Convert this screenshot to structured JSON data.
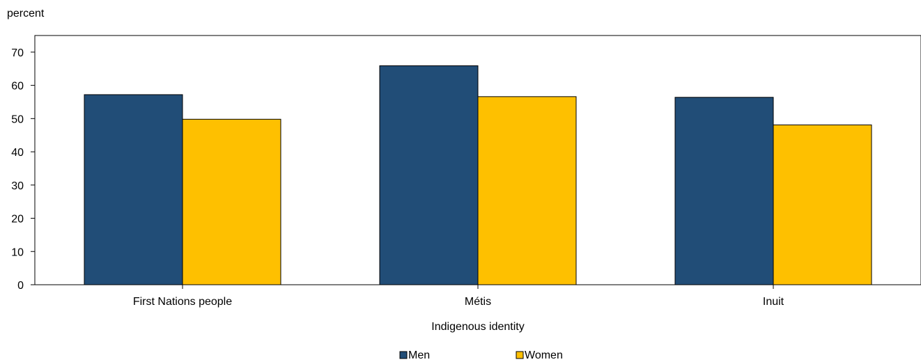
{
  "chart_data": {
    "type": "bar",
    "title": "",
    "ylabel": "percent",
    "xlabel": "Indigenous identity",
    "categories": [
      "First Nations people",
      "Métis",
      "Inuit"
    ],
    "series": [
      {
        "name": "Men",
        "color": "#214d77",
        "values": [
          57.2,
          65.9,
          56.4
        ]
      },
      {
        "name": "Women",
        "color": "#fec000",
        "values": [
          49.8,
          56.6,
          48.1
        ]
      }
    ],
    "ylim": [
      0,
      75
    ],
    "yticks": [
      0,
      10,
      20,
      30,
      40,
      50,
      60,
      70
    ],
    "grid": false,
    "legend_position": "bottom-center"
  }
}
